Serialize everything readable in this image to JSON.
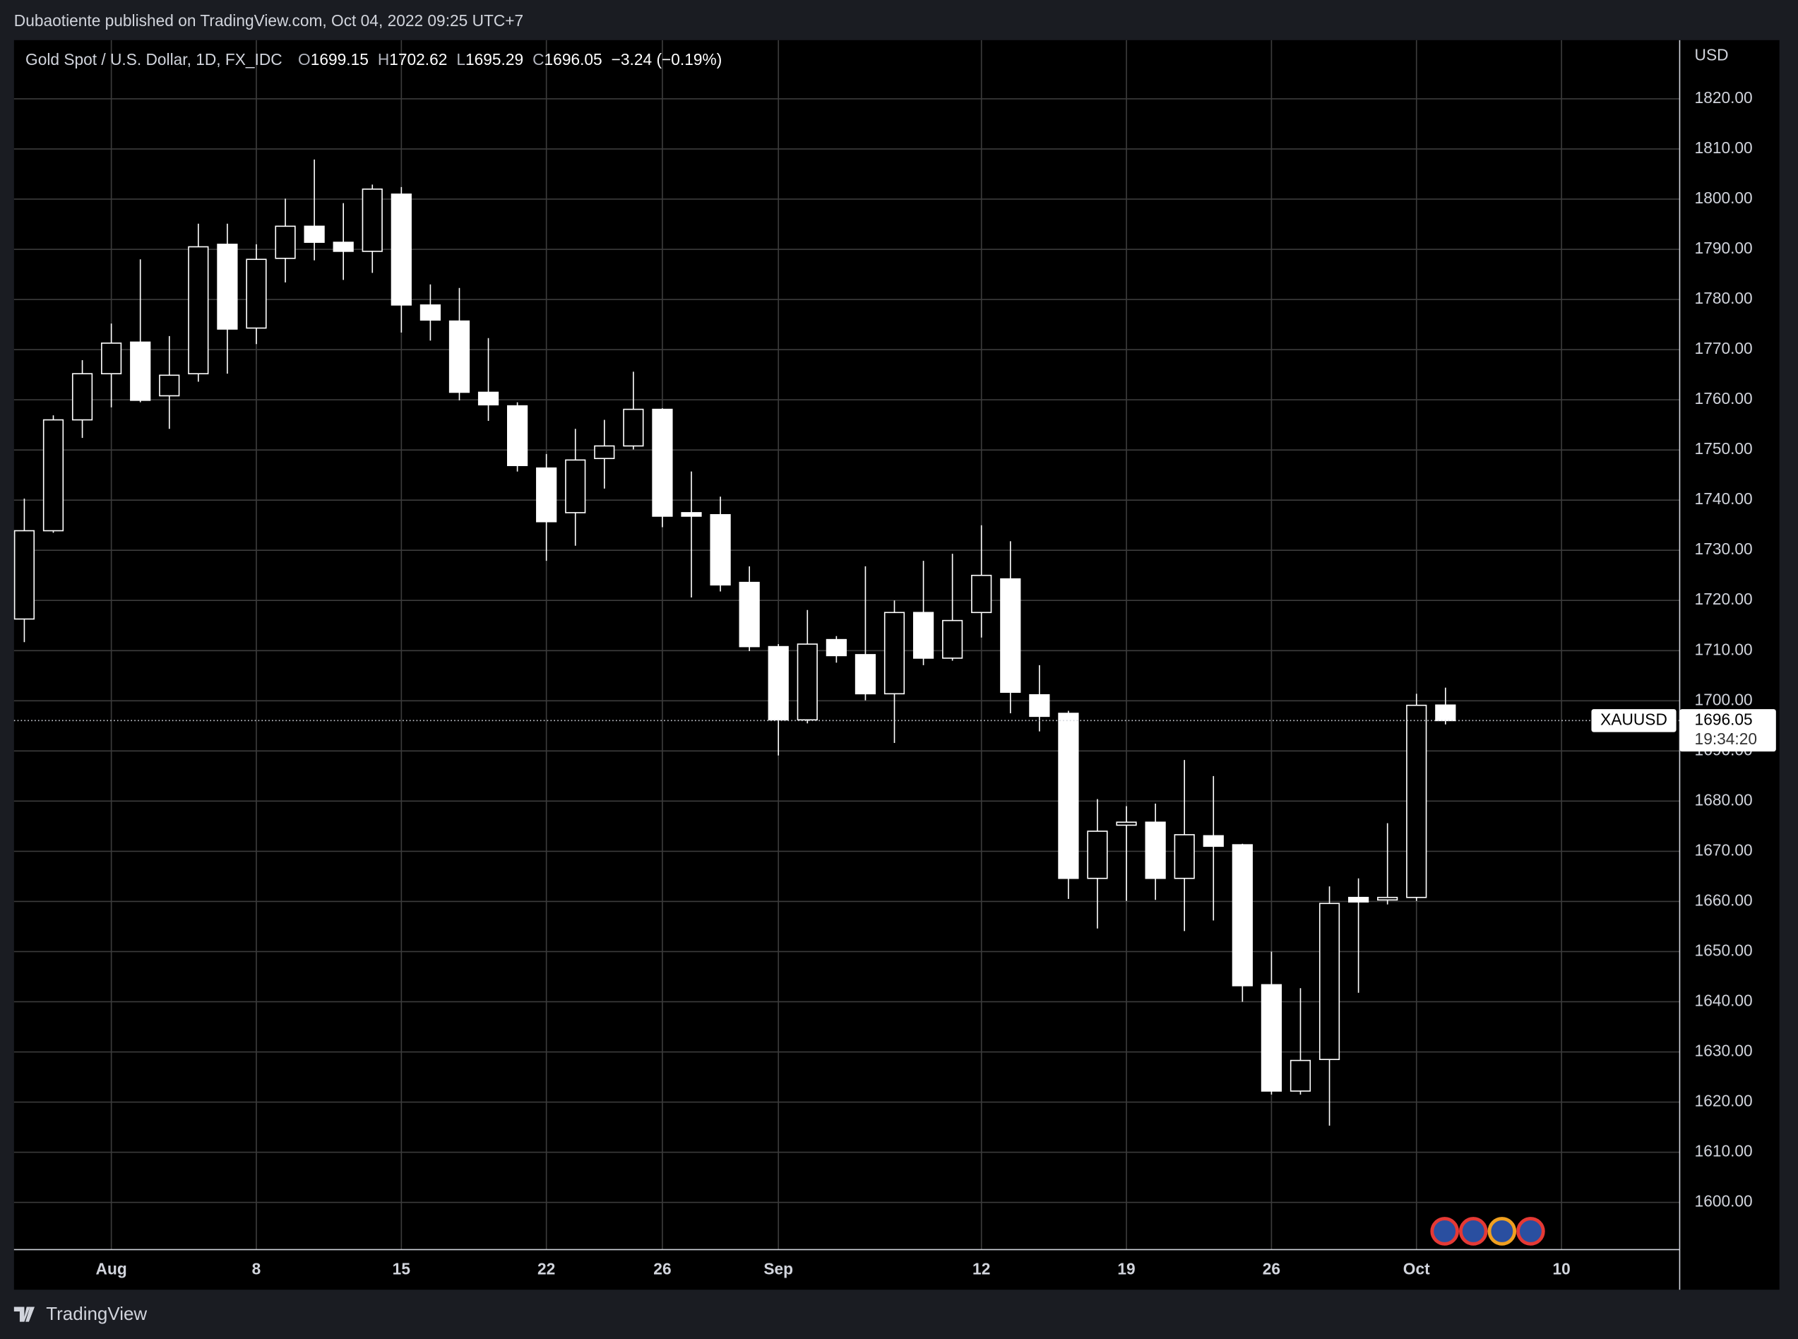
{
  "header": {
    "publisher": "Dubaotiente published on TradingView.com, Oct 04, 2022 09:25 UTC+7",
    "symbol": "Gold Spot / U.S. Dollar, 1D, FX_IDC",
    "open_label": "O",
    "open": "1699.15",
    "high_label": "H",
    "high": "1702.62",
    "low_label": "L",
    "low": "1695.29",
    "close_label": "C",
    "close": "1696.05",
    "change": "−3.24 (−0.19%)",
    "currency": "USD"
  },
  "chart_data": {
    "type": "candlestick",
    "categories": [
      null,
      null,
      null,
      "Aug",
      null,
      null,
      null,
      null,
      "8",
      null,
      null,
      null,
      null,
      "15",
      null,
      null,
      null,
      null,
      "22",
      null,
      null,
      null,
      "26",
      null,
      null,
      null,
      "Sep",
      null,
      null,
      null,
      null,
      null,
      null,
      "12",
      null,
      null,
      null,
      null,
      "19",
      null,
      null,
      null,
      null,
      "26",
      null,
      null,
      null,
      null,
      "Oct",
      null,
      null,
      null,
      null,
      "10"
    ],
    "open": [
      1716.3,
      1733.9,
      1756.0,
      1765.2,
      1771.5,
      1760.8,
      1765.2,
      1791.0,
      1774.3,
      1788.2,
      1794.6,
      1791.4,
      1789.6,
      1801.0,
      1778.9,
      1775.7,
      1761.5,
      1758.8,
      1746.4,
      1737.5,
      1748.3,
      1750.8,
      1758.1,
      1737.5,
      1737.1,
      1723.6,
      1710.8,
      1696.2,
      1712.2,
      1709.2,
      1701.4,
      1717.6,
      1708.5,
      1717.6,
      1724.3,
      1701.2,
      1697.5,
      1664.6,
      1675.2,
      1675.8,
      1664.6,
      1673.1,
      1671.3,
      1643.4,
      1622.2,
      1628.5,
      1660.8,
      1660.3,
      1660.8,
      1699.15,
      null,
      null,
      null,
      null
    ],
    "high": [
      1740.3,
      1756.9,
      1767.9,
      1775.2,
      1788.0,
      1772.7,
      1795.1,
      1795.1,
      1791.0,
      1800.1,
      1807.9,
      1799.2,
      1802.9,
      1802.4,
      1783.0,
      1782.3,
      1772.3,
      1759.5,
      1749.2,
      1754.2,
      1756.0,
      1765.6,
      1758.3,
      1745.7,
      1740.7,
      1726.8,
      1711.3,
      1718.1,
      1712.9,
      1726.8,
      1720.0,
      1727.9,
      1729.3,
      1735.0,
      1731.8,
      1707.1,
      1698.0,
      1680.4,
      1679.0,
      1679.5,
      1688.2,
      1685.0,
      1671.5,
      1650.0,
      1642.7,
      1663.0,
      1664.6,
      1675.6,
      1701.4,
      1702.62,
      null,
      null,
      null,
      null
    ],
    "low": [
      1711.7,
      1733.5,
      1752.4,
      1758.5,
      1759.5,
      1754.2,
      1763.6,
      1765.2,
      1771.1,
      1783.4,
      1787.8,
      1783.9,
      1785.3,
      1773.4,
      1771.8,
      1759.9,
      1755.8,
      1745.7,
      1727.9,
      1730.9,
      1742.3,
      1750.1,
      1734.6,
      1720.6,
      1721.8,
      1709.9,
      1689.1,
      1695.5,
      1707.6,
      1700.1,
      1691.6,
      1707.1,
      1708.0,
      1712.6,
      1697.5,
      1693.9,
      1660.5,
      1654.6,
      1660.1,
      1660.3,
      1654.1,
      1656.2,
      1640.0,
      1621.5,
      1621.5,
      1615.3,
      1641.8,
      1659.4,
      1660.1,
      1695.29,
      null,
      null,
      null,
      null
    ],
    "close": [
      1733.9,
      1756.0,
      1765.2,
      1771.3,
      1759.9,
      1764.9,
      1790.5,
      1774.1,
      1788.0,
      1794.6,
      1791.4,
      1789.6,
      1802.0,
      1778.9,
      1775.9,
      1761.5,
      1759.0,
      1746.9,
      1735.7,
      1748.0,
      1750.8,
      1758.1,
      1736.8,
      1736.8,
      1723.1,
      1710.8,
      1696.2,
      1711.3,
      1709.0,
      1701.4,
      1717.6,
      1708.5,
      1716.0,
      1725.0,
      1701.7,
      1696.9,
      1664.6,
      1674.0,
      1675.8,
      1664.6,
      1673.3,
      1671.0,
      1643.2,
      1622.2,
      1628.3,
      1659.6,
      1659.9,
      1660.8,
      1699.1,
      1696.05,
      null,
      null,
      null,
      null
    ],
    "up_color": "#000000",
    "down_color": "#ffffff",
    "border_color": "#ffffff",
    "ylim": [
      1590.6,
      1831.7
    ],
    "yticks": [
      {
        "value": 1600,
        "label": "1600.00"
      },
      {
        "value": 1610,
        "label": "1610.00"
      },
      {
        "value": 1620,
        "label": "1620.00"
      },
      {
        "value": 1630,
        "label": "1630.00"
      },
      {
        "value": 1640,
        "label": "1640.00"
      },
      {
        "value": 1650,
        "label": "1650.00"
      },
      {
        "value": 1660,
        "label": "1660.00"
      },
      {
        "value": 1670,
        "label": "1670.00"
      },
      {
        "value": 1680,
        "label": "1680.00"
      },
      {
        "value": 1690,
        "label": "1690.00"
      },
      {
        "value": 1700,
        "label": "1700.00"
      },
      {
        "value": 1710,
        "label": "1710.00"
      },
      {
        "value": 1720,
        "label": "1720.00"
      },
      {
        "value": 1730,
        "label": "1730.00"
      },
      {
        "value": 1740,
        "label": "1740.00"
      },
      {
        "value": 1750,
        "label": "1750.00"
      },
      {
        "value": 1760,
        "label": "1760.00"
      },
      {
        "value": 1770,
        "label": "1770.00"
      },
      {
        "value": 1780,
        "label": "1780.00"
      },
      {
        "value": 1790,
        "label": "1790.00"
      },
      {
        "value": 1800,
        "label": "1800.00"
      },
      {
        "value": 1810,
        "label": "1810.00"
      },
      {
        "value": 1820,
        "label": "1820.00"
      }
    ],
    "grid": true,
    "last_price": {
      "value": 1696.05,
      "label": "1696.05",
      "symbol": "XAUUSD",
      "countdown": "19:34:20"
    }
  },
  "footer": {
    "brand": "TradingView"
  }
}
